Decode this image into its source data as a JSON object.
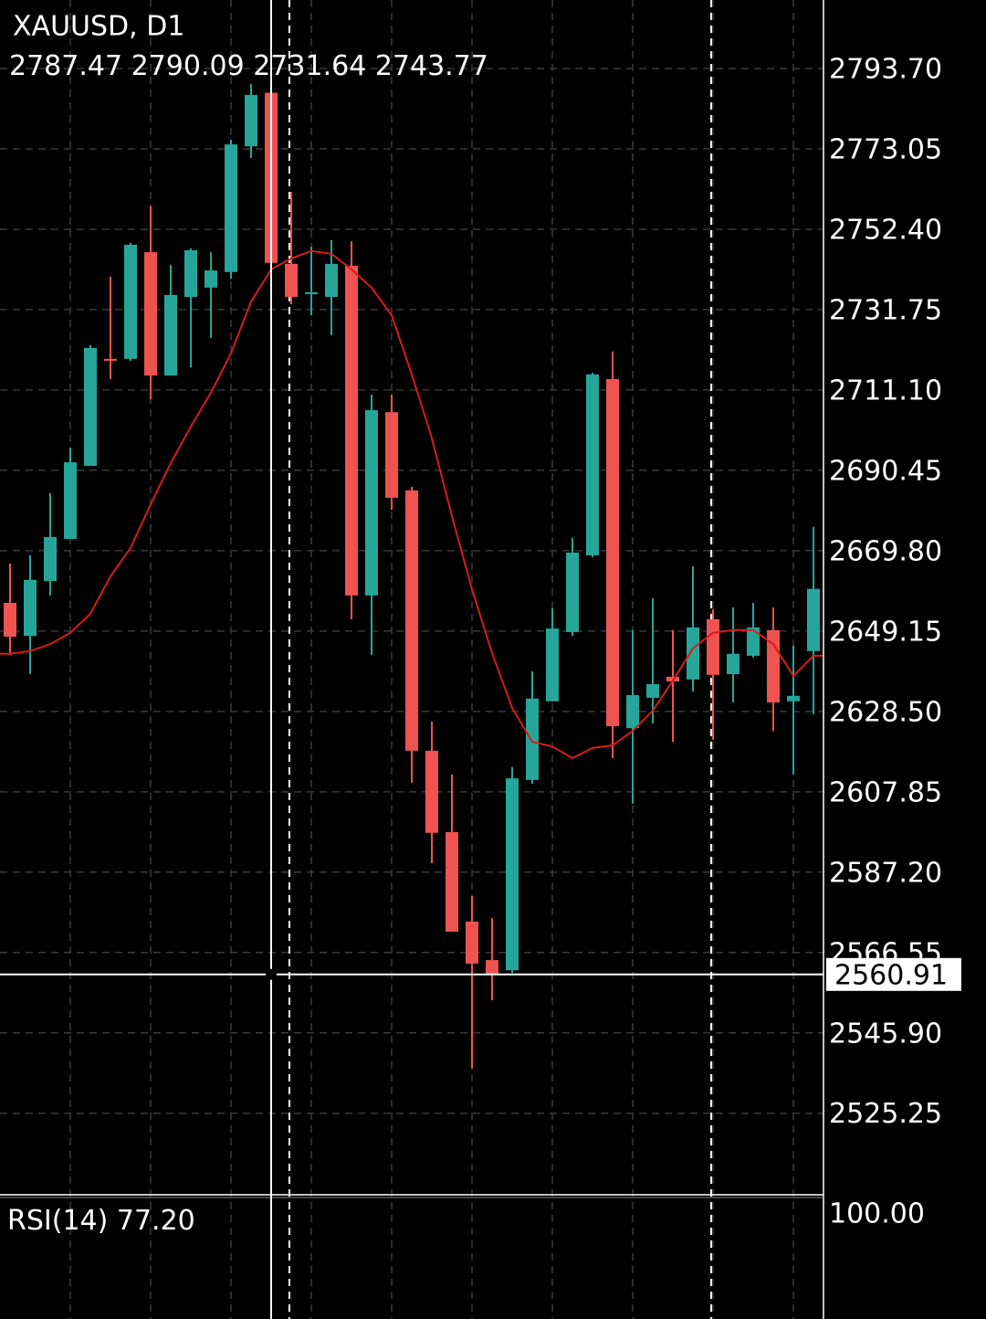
{
  "chart_data": {
    "type": "candlestick",
    "title": "XAUUSD, D1",
    "up_color": "#26a69a",
    "down_color": "#ef5350",
    "open": [
      2656.4,
      2647.9,
      2662.0,
      2672.8,
      2691.6,
      2719.1,
      2719.1,
      2746.5,
      2714.8,
      2735.0,
      2737.4,
      2741.4,
      2773.7,
      2787.47,
      2743.5,
      2735.7,
      2735.0,
      2743.0,
      2658.3,
      2705.4,
      2685.3,
      2618.4,
      2597.5,
      2574.5,
      2564.6,
      2562.0,
      2610.9,
      2631.1,
      2648.9,
      2668.6,
      2713.9,
      2624.2,
      2632.0,
      2637.4,
      2636.7,
      2652.2,
      2638.1,
      2642.8,
      2649.4,
      2631.1,
      2644.0
    ],
    "high": [
      2666.5,
      2668.6,
      2684.6,
      2696.3,
      2722.6,
      2740.2,
      2748.9,
      2758.3,
      2743.2,
      2747.5,
      2746.5,
      2775.4,
      2789.7,
      2790.09,
      2762.0,
      2747.9,
      2749.6,
      2749.3,
      2709.9,
      2709.9,
      2686.2,
      2625.9,
      2612.3,
      2581.1,
      2575.4,
      2614.2,
      2638.8,
      2655.0,
      2673.1,
      2715.5,
      2721.0,
      2649.4,
      2657.6,
      2649.4,
      2665.8,
      2654.8,
      2655.2,
      2656.4,
      2655.2,
      2645.4,
      2675.9
    ],
    "low": [
      2643.0,
      2638.1,
      2658.3,
      2672.8,
      2691.6,
      2713.9,
      2718.6,
      2708.7,
      2714.8,
      2716.9,
      2724.5,
      2739.7,
      2770.7,
      2731.64,
      2733.1,
      2730.3,
      2725.2,
      2652.2,
      2643.0,
      2680.3,
      2610.2,
      2589.5,
      2571.9,
      2536.7,
      2554.3,
      2561.3,
      2609.9,
      2631.1,
      2647.9,
      2668.1,
      2616.5,
      2604.8,
      2625.4,
      2620.7,
      2633.6,
      2621.2,
      2630.8,
      2642.3,
      2623.5,
      2612.3,
      2627.8
    ],
    "close": [
      2647.7,
      2662.3,
      2673.3,
      2692.5,
      2721.9,
      2718.6,
      2748.4,
      2714.8,
      2735.5,
      2747.0,
      2741.8,
      2774.2,
      2786.9,
      2743.77,
      2735.0,
      2736.2,
      2743.5,
      2658.3,
      2705.9,
      2683.4,
      2618.4,
      2597.3,
      2571.9,
      2563.7,
      2560.9,
      2611.3,
      2631.8,
      2649.8,
      2669.3,
      2715.1,
      2624.7,
      2632.7,
      2635.5,
      2636.2,
      2650.1,
      2637.9,
      2643.3,
      2650.1,
      2630.8,
      2632.5,
      2660.0
    ],
    "ma": {
      "color": "#d81b1b",
      "values": [
        2643.3,
        2644.0,
        2645.8,
        2648.7,
        2653.6,
        2663.2,
        2670.5,
        2681.7,
        2692.3,
        2701.7,
        2710.4,
        2720.5,
        2733.8,
        2742.1,
        2744.9,
        2746.8,
        2746.1,
        2742.1,
        2737.4,
        2730.3,
        2715.1,
        2698.7,
        2678.7,
        2659.9,
        2643.5,
        2629.4,
        2620.7,
        2619.5,
        2616.5,
        2619.1,
        2619.8,
        2623.5,
        2628.7,
        2636.4,
        2644.7,
        2648.7,
        2649.4,
        2649.4,
        2645.8,
        2637.6,
        2642.8
      ]
    },
    "ylim": [
      2504.3,
      2811.3
    ],
    "yticks": [
      {
        "value": 2793.7,
        "label": "2793.70"
      },
      {
        "value": 2773.05,
        "label": "2773.05"
      },
      {
        "value": 2752.4,
        "label": "2752.40"
      },
      {
        "value": 2731.75,
        "label": "2731.75"
      },
      {
        "value": 2711.1,
        "label": "2711.10"
      },
      {
        "value": 2690.45,
        "label": "2690.45"
      },
      {
        "value": 2669.8,
        "label": "2669.80"
      },
      {
        "value": 2649.15,
        "label": "2649.15"
      },
      {
        "value": 2628.5,
        "label": "2628.50"
      },
      {
        "value": 2607.85,
        "label": "2607.85"
      },
      {
        "value": 2587.2,
        "label": "2587.20"
      },
      {
        "value": 2566.55,
        "label": "2566.55"
      },
      {
        "value": 2545.9,
        "label": "2545.90"
      },
      {
        "value": 2525.25,
        "label": "2525.25"
      }
    ],
    "grid": true,
    "crosshair": {
      "value": 2560.91,
      "label": "2560.91"
    },
    "rsi": {
      "title": "RSI(14)",
      "value": 77.2,
      "value_label": "77.20",
      "yticks": [
        {
          "value": 100,
          "label": "100.00"
        }
      ]
    }
  }
}
